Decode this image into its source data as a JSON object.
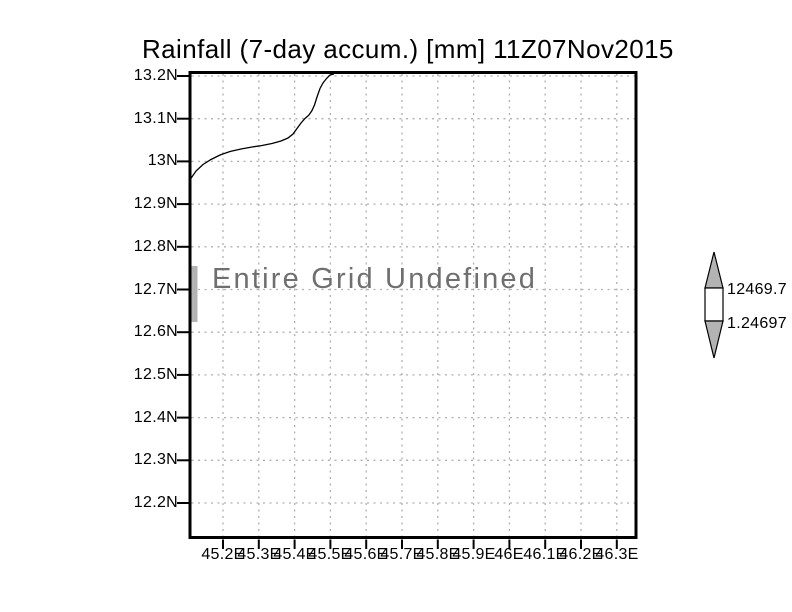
{
  "title": "Rainfall (7-day accum.) [mm] 11Z07Nov2015",
  "plot": {
    "message": "Entire Grid Undefined",
    "lat_ticks": [
      "13.2N",
      "13.1N",
      "13N",
      "12.9N",
      "12.8N",
      "12.7N",
      "12.6N",
      "12.5N",
      "12.4N",
      "12.3N",
      "12.2N"
    ],
    "lon_ticks": [
      "45.2E",
      "45.3E",
      "45.4E",
      "45.5E",
      "45.6E",
      "45.7E",
      "45.8E",
      "45.9E",
      "46E",
      "46.1E",
      "46.2E",
      "46.3E"
    ]
  },
  "colorbar": {
    "upper_label": "12469.7",
    "lower_label": "1.24697",
    "triangle_color": "#b3b3b3",
    "box_color": "#ffffff"
  },
  "colors": {
    "frame": "#000000",
    "grid": "#b0b0b0",
    "message": "#6f6f6f",
    "coastline": "#000000",
    "gray_fill": "#b3b3b3"
  },
  "chart_data": {
    "type": "heatmap",
    "title": "Rainfall (7-day accum.) [mm] 11Z07Nov2015",
    "variable": "Rainfall (7-day accum.)",
    "units": "mm",
    "time": "11Z07Nov2015",
    "x_ticks": [
      "45.2E",
      "45.3E",
      "45.4E",
      "45.5E",
      "45.6E",
      "45.7E",
      "45.8E",
      "45.9E",
      "46E",
      "46.1E",
      "46.2E",
      "46.3E"
    ],
    "y_ticks": [
      "13.2N",
      "13.1N",
      "13N",
      "12.9N",
      "12.8N",
      "12.7N",
      "12.6N",
      "12.5N",
      "12.4N",
      "12.3N",
      "12.2N"
    ],
    "x_values_deg_east": [
      45.2,
      45.3,
      45.4,
      45.5,
      45.6,
      45.7,
      45.8,
      45.9,
      46.0,
      46.1,
      46.2,
      46.3
    ],
    "y_values_deg_north": [
      13.2,
      13.1,
      13.0,
      12.9,
      12.8,
      12.7,
      12.6,
      12.5,
      12.4,
      12.3,
      12.2
    ],
    "values": null,
    "annotation": "Entire Grid Undefined",
    "colorbar_labels": [
      12469.7,
      1.24697
    ],
    "grid": true,
    "legend_position": "right-colorbar",
    "map_features": "coastline in upper-left quadrant; short gray shore segment on left edge near 12.65N-12.7N"
  }
}
